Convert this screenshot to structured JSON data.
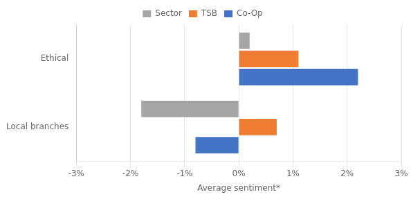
{
  "chart_data": {
    "type": "bar",
    "orientation": "horizontal",
    "categories": [
      "Ethical",
      "Local branches"
    ],
    "series": [
      {
        "name": "Sector",
        "color": "#a5a5a5",
        "values": [
          0.002,
          -0.018
        ]
      },
      {
        "name": "TSB",
        "color": "#ed7d31",
        "values": [
          0.011,
          0.007
        ]
      },
      {
        "name": "Co-Op",
        "color": "#4472c4",
        "values": [
          0.022,
          -0.008
        ]
      }
    ],
    "xlabel": "Average sentiment*",
    "xlim": [
      -0.03,
      0.03
    ],
    "xticks": [
      {
        "value": -0.03,
        "label": "-3%"
      },
      {
        "value": -0.02,
        "label": "-2%"
      },
      {
        "value": -0.01,
        "label": "-1%"
      },
      {
        "value": 0.0,
        "label": "0%"
      },
      {
        "value": 0.01,
        "label": "1%"
      },
      {
        "value": 0.02,
        "label": "2%"
      },
      {
        "value": 0.03,
        "label": "3%"
      }
    ],
    "grid": true,
    "legend": "top"
  }
}
